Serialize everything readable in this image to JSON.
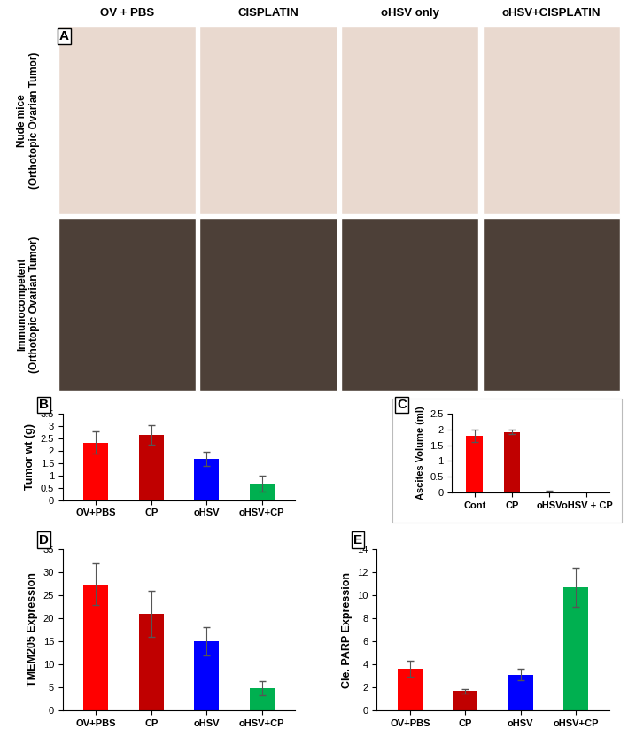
{
  "panel_a": {
    "label": "A",
    "columns": [
      "OV + PBS",
      "CISPLATIN",
      "oHSV only",
      "oHSV+CISPLATIN"
    ],
    "rows": [
      [
        "Nude mice",
        "(Orthotopic Ovarian Tumor)"
      ],
      [
        "Immunocompetent",
        "(Orthotopic Ovarian Tumor)"
      ]
    ]
  },
  "chart_data": [
    {
      "type": "bar",
      "label": "B",
      "y_label": "Tumor wt (g)",
      "categories": [
        "OV+PBS",
        "CP",
        "oHSV",
        "oHSV+CP"
      ],
      "values": [
        2.33,
        2.65,
        1.68,
        0.67
      ],
      "error": [
        0.45,
        0.4,
        0.28,
        0.33
      ],
      "colors": [
        "#ff0000",
        "#c00000",
        "#0000ff",
        "#00b050"
      ],
      "ylim": [
        0,
        3.5
      ],
      "yticks": [
        0,
        0.5,
        1,
        1.5,
        2,
        2.5,
        3,
        3.5
      ],
      "grid": false
    },
    {
      "type": "bar",
      "label": "C",
      "y_label": "Ascites Volume (ml)",
      "categories": [
        "Cont",
        "CP",
        "oHSV",
        "oHSV + CP"
      ],
      "values": [
        1.8,
        1.92,
        0.03,
        0
      ],
      "error": [
        0.2,
        0.08,
        0.02,
        0
      ],
      "colors": [
        "#ff0000",
        "#c00000",
        "#00b050",
        "#00b050"
      ],
      "ylim": [
        0,
        2.5
      ],
      "yticks": [
        0,
        0.5,
        1,
        1.5,
        2,
        2.5
      ],
      "grid": false
    },
    {
      "type": "bar",
      "label": "D",
      "y_label": "TMEM205 Expression",
      "categories": [
        "OV+PBS",
        "CP",
        "oHSV",
        "oHSV+CP"
      ],
      "values": [
        27.3,
        21,
        15,
        4.8
      ],
      "error": [
        4.5,
        5,
        3,
        1.5
      ],
      "colors": [
        "#ff0000",
        "#c00000",
        "#0000ff",
        "#00b050"
      ],
      "ylim": [
        0,
        35
      ],
      "yticks": [
        0,
        5,
        10,
        15,
        20,
        25,
        30,
        35
      ],
      "grid": false
    },
    {
      "type": "bar",
      "label": "E",
      "y_label": "Cle. PARP Expression",
      "categories": [
        "OV+PBS",
        "CP",
        "oHSV",
        "oHSV+CP"
      ],
      "values": [
        3.6,
        1.7,
        3.1,
        10.7
      ],
      "error": [
        0.7,
        0.2,
        0.5,
        1.7
      ],
      "colors": [
        "#ff0000",
        "#c00000",
        "#0000ff",
        "#00b050"
      ],
      "ylim": [
        0,
        14
      ],
      "yticks": [
        0,
        2,
        4,
        6,
        8,
        10,
        12,
        14
      ],
      "grid": false
    }
  ]
}
